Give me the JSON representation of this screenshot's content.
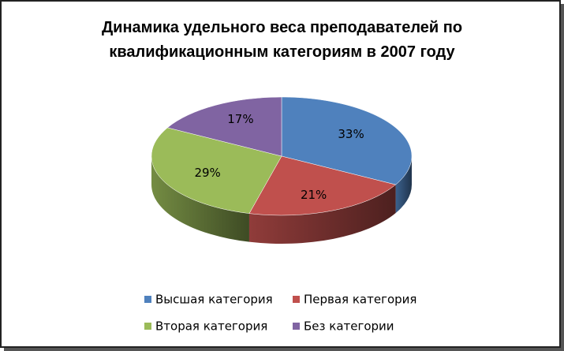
{
  "chart_data": {
    "type": "pie3d",
    "title": "Динамика удельного веса преподавателей по квалификационным категориям в 2007 году",
    "categories": [
      "Высшая категория",
      "Первая категория",
      "Вторая категория",
      "Без категории"
    ],
    "values": [
      33,
      21,
      29,
      17
    ],
    "value_labels": [
      "33%",
      "21%",
      "29%",
      "17%"
    ],
    "colors": [
      "#4f81bd",
      "#c0504d",
      "#9bbb59",
      "#8064a2"
    ],
    "legend": "bottom"
  }
}
